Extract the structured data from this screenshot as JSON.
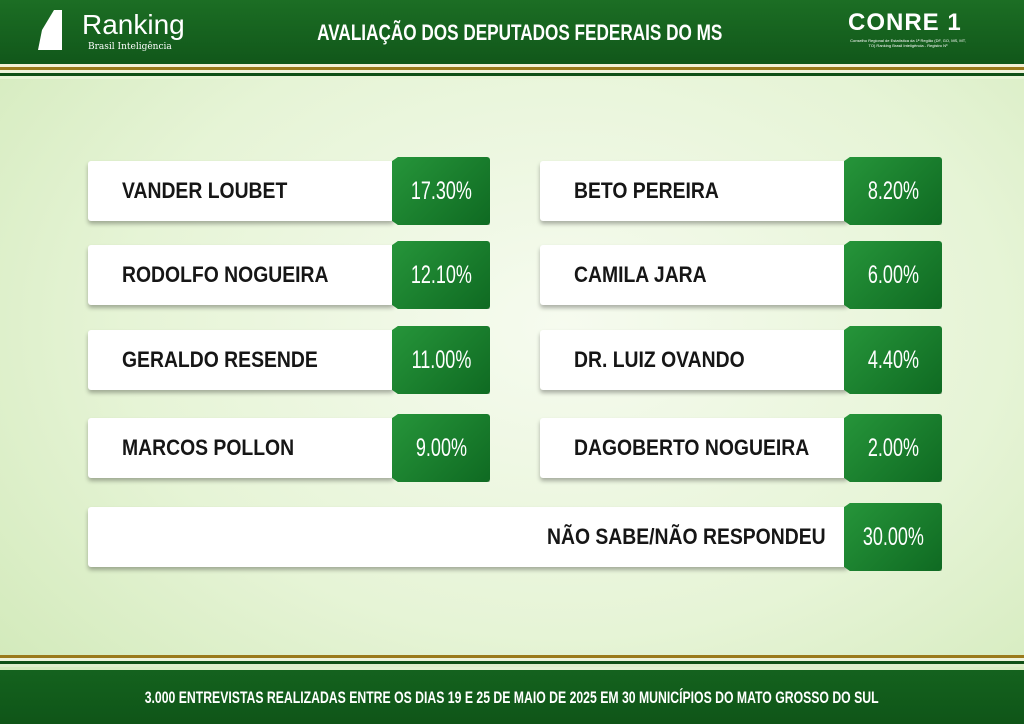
{
  "header": {
    "logo_text": "Ranking",
    "logo_subtitle": "Brasil Inteligência",
    "title": "AVALIAÇÃO DOS DEPUTADOS FEDERAIS DO MS",
    "conre_logo": "CONRE 1",
    "conre_fine": "Conselho Regional de Estatística da 1ª Região (DF, GO, MS, MT, TO) Ranking Brasil Inteligência - Registro Nº"
  },
  "chart_data": {
    "type": "table",
    "categories": [
      "VANDER LOUBET",
      "RODOLFO NOGUEIRA",
      "GERALDO RESENDE",
      "MARCOS POLLON",
      "BETO PEREIRA",
      "CAMILA JARA",
      "DR. LUIZ OVANDO",
      "DAGOBERTO NOGUEIRA",
      "NÃO SABE/NÃO RESPONDEU"
    ],
    "values": [
      17.3,
      12.1,
      11.0,
      9.0,
      8.2,
      6.0,
      4.4,
      2.0,
      30.0
    ],
    "labels": [
      "17.30%",
      "12.10%",
      "11.00%",
      "9.00%",
      "8.20%",
      "6.00%",
      "4.40%",
      "2.00%",
      "30.00%"
    ]
  },
  "footer": {
    "note": "3.000 ENTREVISTAS REALIZADAS ENTRE OS DIAS 19 E 25 DE MAIO DE 2025 EM 30 MUNICÍPIOS DO MATO GROSSO DO SUL"
  },
  "colors": {
    "brand_green": "#17661f",
    "accent_gold": "#9a7a1c"
  }
}
